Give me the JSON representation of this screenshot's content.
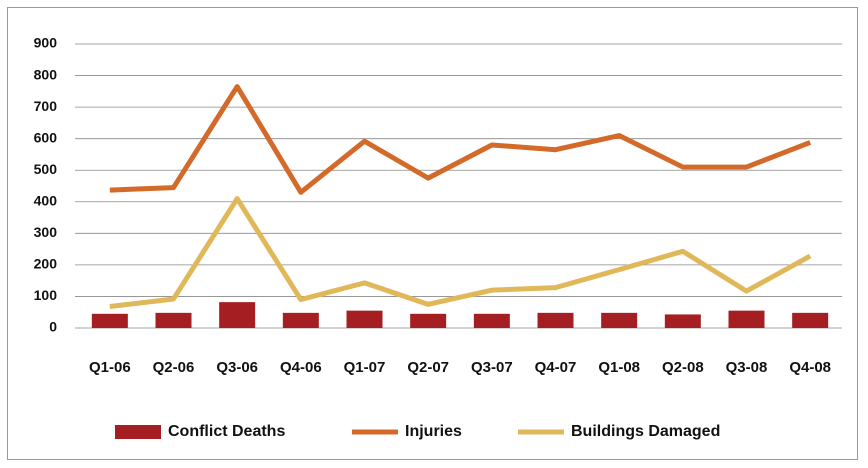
{
  "chart_data": {
    "type": "bar",
    "categories": [
      "Q1-06",
      "Q2-06",
      "Q3-06",
      "Q4-06",
      "Q1-07",
      "Q2-07",
      "Q3-07",
      "Q4-07",
      "Q1-08",
      "Q2-08",
      "Q3-08",
      "Q4-08"
    ],
    "series": [
      {
        "name": "Conflict Deaths",
        "type": "bar",
        "color": "#a51e22",
        "values": [
          45,
          48,
          82,
          48,
          55,
          45,
          45,
          48,
          48,
          43,
          55,
          48
        ]
      },
      {
        "name": "Injuries",
        "type": "line",
        "color": "#d46a2a",
        "values": [
          437,
          445,
          765,
          430,
          592,
          475,
          580,
          565,
          610,
          510,
          510,
          588
        ]
      },
      {
        "name": "Buildings Damaged",
        "type": "line",
        "color": "#e0b85a",
        "values": [
          68,
          92,
          410,
          90,
          143,
          75,
          120,
          128,
          185,
          243,
          117,
          228
        ]
      }
    ],
    "ylim": [
      0,
      900
    ],
    "yticks": [
      0,
      100,
      200,
      300,
      400,
      500,
      600,
      700,
      800,
      900
    ],
    "grid": true,
    "legend": "bottom"
  }
}
